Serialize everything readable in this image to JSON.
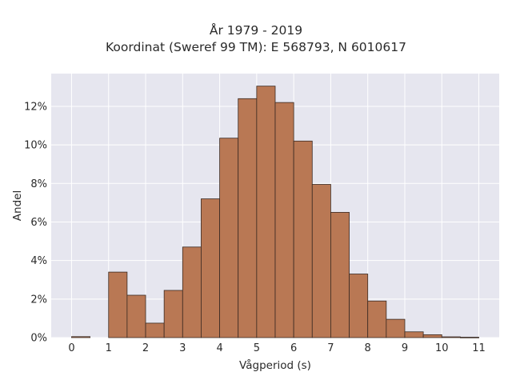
{
  "title": {
    "line1": "År 1979 - 2019",
    "line2": "Koordinat (Sweref 99 TM): E 568793, N 6010617"
  },
  "chart_data": {
    "type": "bar",
    "title": "År 1979 - 2019\nKoordinat (Sweref 99 TM): E 568793, N 6010617",
    "xlabel": "Vågperiod (s)",
    "ylabel": "Andel",
    "bin_width": 0.5,
    "bins": [
      0,
      0.5,
      1,
      1.5,
      2,
      2.5,
      3,
      3.5,
      4,
      4.5,
      5,
      5.5,
      6,
      6.5,
      7,
      7.5,
      8,
      8.5,
      9,
      9.5,
      10,
      10.5
    ],
    "values": [
      0.05,
      0,
      3.4,
      2.2,
      0.75,
      2.45,
      4.7,
      7.2,
      10.35,
      12.4,
      13.05,
      12.2,
      10.2,
      7.95,
      6.5,
      3.3,
      1.9,
      0.95,
      0.3,
      0.15,
      0.04,
      0.02
    ],
    "value_unit": "%",
    "xlim": [
      -0.55,
      11.55
    ],
    "ylim": [
      0,
      13.7
    ],
    "xticks": [
      "0",
      "1",
      "2",
      "3",
      "4",
      "5",
      "6",
      "7",
      "8",
      "9",
      "10",
      "11"
    ],
    "yticks": [
      "0%",
      "2%",
      "4%",
      "6%",
      "8%",
      "10%",
      "12%"
    ],
    "grid": true,
    "colors": {
      "bar_fill": "#b97854",
      "bar_edge": "#3a2a22",
      "plot_bg": "#e6e6ef",
      "grid": "#ffffff"
    }
  }
}
